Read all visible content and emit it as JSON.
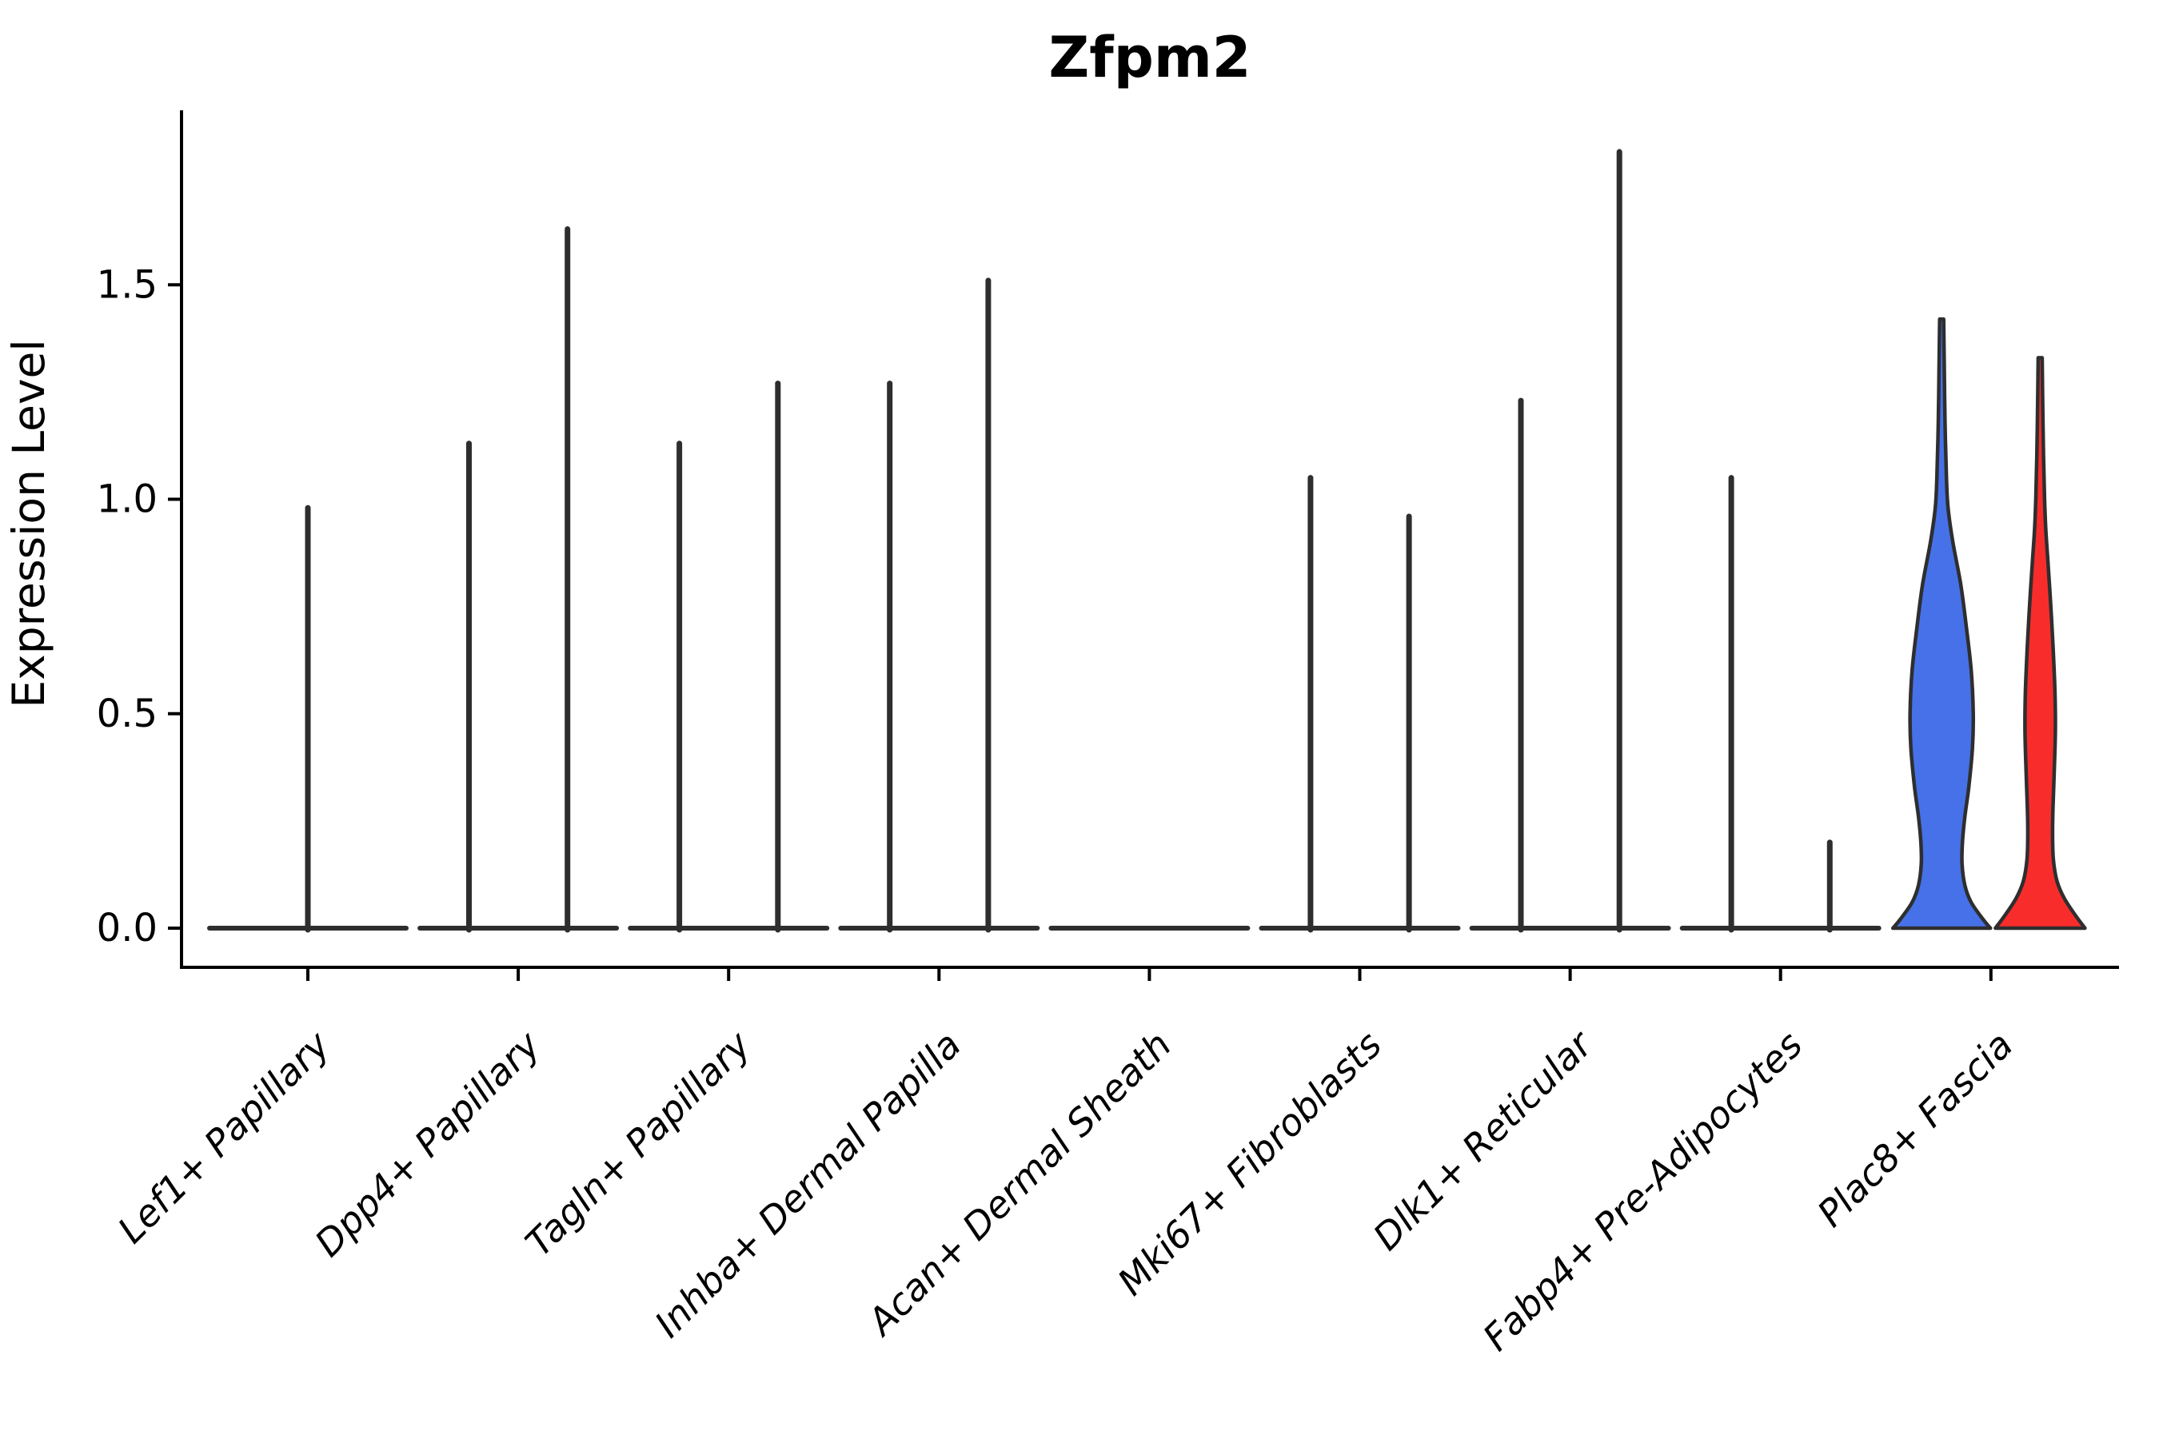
{
  "title": "Zfpm2",
  "ylabel": "Expression Level",
  "chart_data": {
    "type": "violin",
    "title": "Zfpm2",
    "xlabel": "",
    "ylabel": "Expression Level",
    "ylim": [
      0,
      1.9
    ],
    "yticks": [
      0.0,
      0.5,
      1.0,
      1.5
    ],
    "ytick_labels": [
      "0.0",
      "0.5",
      "1.0",
      "1.5"
    ],
    "grid": false,
    "legend_position": "none",
    "categories": [
      "Lef1+ Papillary",
      "Dpp4+ Papillary",
      "Tagln+ Papillary",
      "Inhba+ Dermal Papilla",
      "Acan+ Dermal Sheath",
      "Mki67+ Fibroblasts",
      "Dlk1+ Reticular",
      "Fabp4+ Pre-Adipocytes",
      "Plac8+ Fascia"
    ],
    "split_series": [
      {
        "name": "split-group-blue",
        "color": "#4671E8"
      },
      {
        "name": "split-group-red",
        "color": "#F92C2C"
      }
    ],
    "line_color": "#2E2E2E",
    "note": "Most violins collapse to a flat baseline at 0 with a thin spike up to the max expression value; Lef1+ Papillary shows a single full-width violin spike; Plac8+ Fascia shows two filled violins (blue and red).",
    "max_expression_per_category": [
      {
        "category": "Lef1+ Papillary",
        "values": [
          0.98,
          null
        ],
        "style": "single-spike"
      },
      {
        "category": "Dpp4+ Papillary",
        "values": [
          1.13,
          1.63
        ],
        "style": "spikes"
      },
      {
        "category": "Tagln+ Papillary",
        "values": [
          1.13,
          1.27
        ],
        "style": "spikes"
      },
      {
        "category": "Inhba+ Dermal Papilla",
        "values": [
          1.27,
          1.51
        ],
        "style": "spikes"
      },
      {
        "category": "Acan+ Dermal Sheath",
        "values": [
          0,
          0
        ],
        "style": "flat"
      },
      {
        "category": "Mki67+ Fibroblasts",
        "values": [
          1.05,
          0.96
        ],
        "style": "spikes"
      },
      {
        "category": "Dlk1+ Reticular",
        "values": [
          1.23,
          1.81
        ],
        "style": "spikes"
      },
      {
        "category": "Fabp4+ Pre-Adipocytes",
        "values": [
          1.05,
          0.2
        ],
        "style": "spikes"
      },
      {
        "category": "Plac8+ Fascia",
        "values": [
          1.42,
          1.33
        ],
        "style": "filled-violins"
      }
    ],
    "violin_profiles": {
      "category": "Plac8+ Fascia",
      "blue": [
        [
          1.42,
          2.5
        ],
        [
          1.32,
          3.2
        ],
        [
          1.18,
          4.2
        ],
        [
          1.05,
          6
        ],
        [
          0.98,
          8
        ],
        [
          0.9,
          14
        ],
        [
          0.8,
          24
        ],
        [
          0.7,
          31
        ],
        [
          0.6,
          37
        ],
        [
          0.5,
          39.5
        ],
        [
          0.42,
          38.5
        ],
        [
          0.33,
          34
        ],
        [
          0.26,
          29
        ],
        [
          0.2,
          26
        ],
        [
          0.15,
          25.5
        ],
        [
          0.1,
          29
        ],
        [
          0.06,
          37
        ],
        [
          0.02,
          52
        ],
        [
          0.0,
          61
        ]
      ],
      "red": [
        [
          1.33,
          2.5
        ],
        [
          1.22,
          3.2
        ],
        [
          1.1,
          4.2
        ],
        [
          1.0,
          5.5
        ],
        [
          0.93,
          7
        ],
        [
          0.86,
          9.5
        ],
        [
          0.76,
          13
        ],
        [
          0.66,
          16
        ],
        [
          0.55,
          18.5
        ],
        [
          0.46,
          19
        ],
        [
          0.36,
          17.5
        ],
        [
          0.28,
          16
        ],
        [
          0.22,
          15.5
        ],
        [
          0.16,
          16.5
        ],
        [
          0.11,
          21
        ],
        [
          0.07,
          30
        ],
        [
          0.03,
          44
        ],
        [
          0.0,
          56
        ]
      ]
    }
  }
}
